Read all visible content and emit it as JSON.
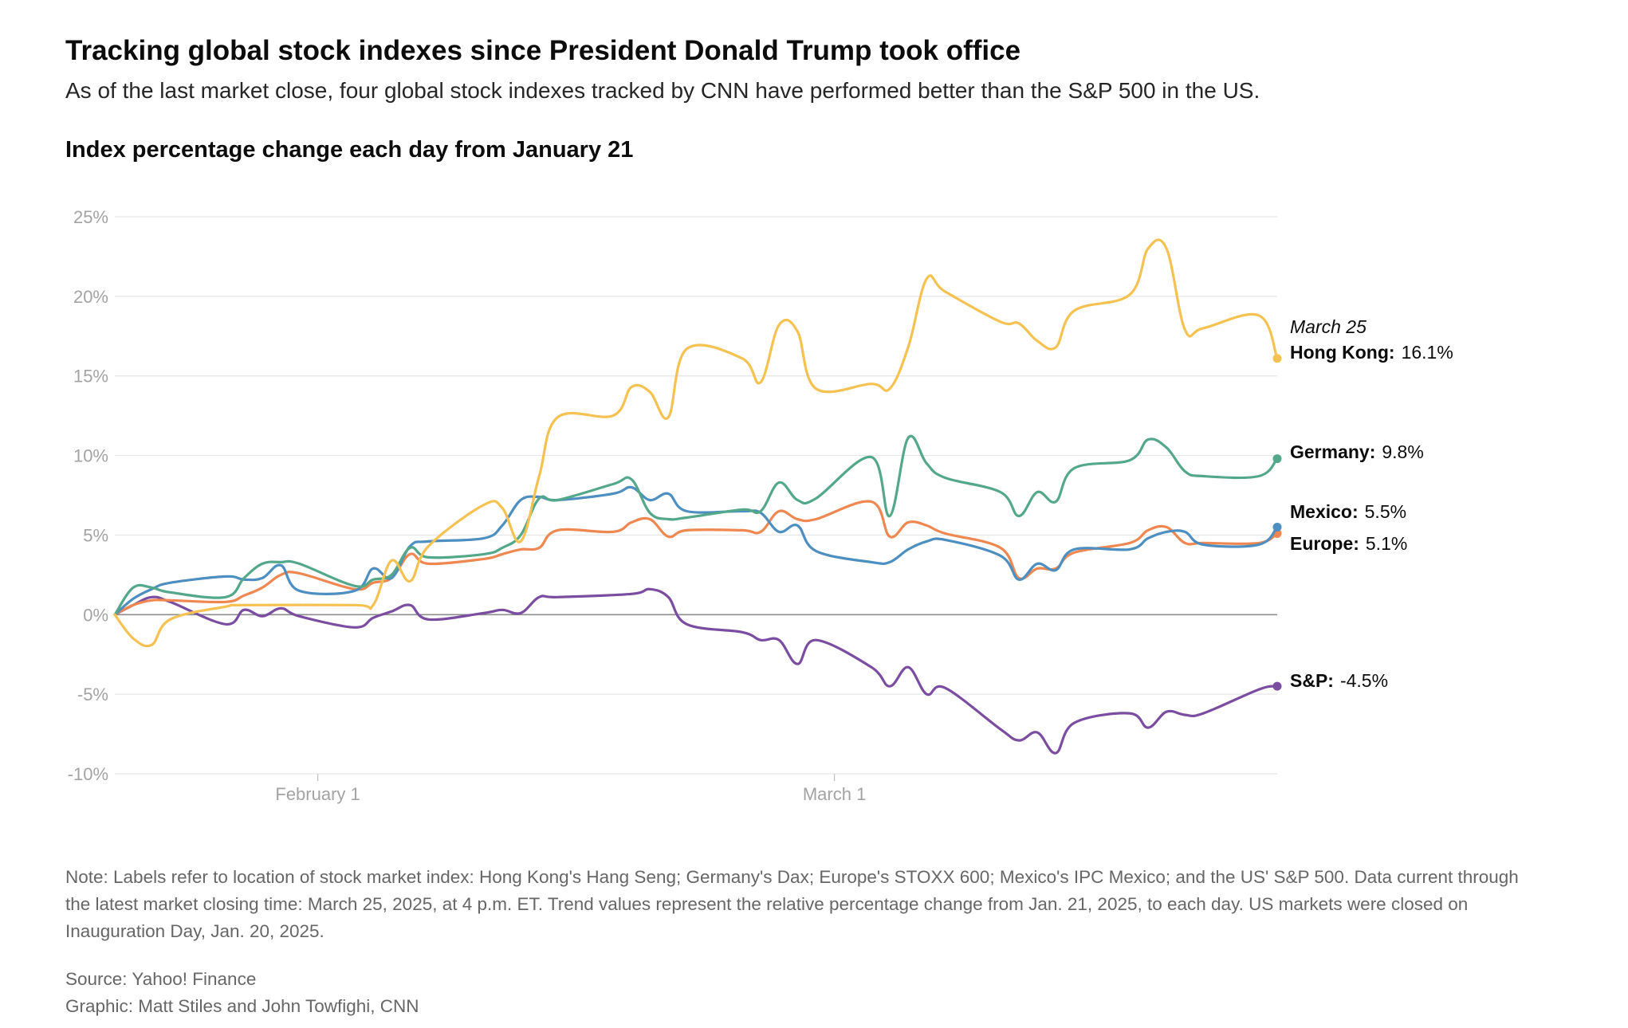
{
  "header": {
    "title": "Tracking global stock indexes since President Donald Trump took office",
    "subtitle": "As of the last market close, four global stock indexes tracked by CNN have performed better than the S&P 500 in the US.",
    "chart_heading": "Index percentage change each day from January 21"
  },
  "footer": {
    "note": "Note: Labels refer to location of stock market index: Hong Kong's Hang Seng; Germany's Dax; Europe's STOXX 600; Mexico's IPC Mexico; and the US' S&P 500. Data current through the latest market closing time: March 25, 2025, at 4 p.m. ET. Trend values represent the relative percentage change from Jan. 21, 2025, to each day. US markets were closed on Inauguration Day, Jan. 20, 2025.",
    "source": "Source: Yahoo! Finance",
    "credit": "Graphic: Matt Stiles and John Towfighi, CNN"
  },
  "chart_data": {
    "type": "line",
    "title": "Index percentage change each day from January 21",
    "xlabel": "",
    "ylabel": "",
    "x_type": "date",
    "xlim": [
      "2025-01-21",
      "2025-03-25"
    ],
    "ylim": [
      -10,
      25
    ],
    "y_ticks": [
      {
        "value": -10,
        "label": "-10%"
      },
      {
        "value": -5,
        "label": "-5%"
      },
      {
        "value": 0,
        "label": "0%"
      },
      {
        "value": 5,
        "label": "5%"
      },
      {
        "value": 10,
        "label": "10%"
      },
      {
        "value": 15,
        "label": "15%"
      },
      {
        "value": 20,
        "label": "20%"
      },
      {
        "value": 25,
        "label": "25%"
      }
    ],
    "x_ticks": [
      {
        "value": "2025-02-01",
        "label": "February 1"
      },
      {
        "value": "2025-03-01",
        "label": "March 1"
      }
    ],
    "grid": true,
    "zero_line": true,
    "legend": "end-labels",
    "end_label_date": "March 25",
    "series": [
      {
        "name": "Hong Kong",
        "value_label": "16.1%",
        "color": "#f5c252",
        "points": [
          [
            "2025-01-21",
            0
          ],
          [
            "2025-01-22",
            -1.5
          ],
          [
            "2025-01-23",
            -1.9
          ],
          [
            "2025-01-24",
            -0.3
          ],
          [
            "2025-01-27",
            0.5
          ],
          [
            "2025-01-28",
            0.6
          ],
          [
            "2025-02-03",
            0.6
          ],
          [
            "2025-02-04",
            0.6
          ],
          [
            "2025-02-05",
            3.4
          ],
          [
            "2025-02-06",
            2.1
          ],
          [
            "2025-02-07",
            4.3
          ],
          [
            "2025-02-10",
            6.9
          ],
          [
            "2025-02-11",
            6.7
          ],
          [
            "2025-02-12",
            4.6
          ],
          [
            "2025-02-13",
            8.7
          ],
          [
            "2025-02-14",
            12.4
          ],
          [
            "2025-02-17",
            12.5
          ],
          [
            "2025-02-18",
            14.3
          ],
          [
            "2025-02-19",
            14.0
          ],
          [
            "2025-02-20",
            12.4
          ],
          [
            "2025-02-21",
            16.7
          ],
          [
            "2025-02-24",
            16.1
          ],
          [
            "2025-02-25",
            14.6
          ],
          [
            "2025-02-26",
            18.2
          ],
          [
            "2025-02-27",
            17.8
          ],
          [
            "2025-02-28",
            14.2
          ],
          [
            "2025-03-03",
            14.5
          ],
          [
            "2025-03-04",
            14.2
          ],
          [
            "2025-03-05",
            16.8
          ],
          [
            "2025-03-06",
            21.1
          ],
          [
            "2025-03-07",
            20.3
          ],
          [
            "2025-03-10",
            18.4
          ],
          [
            "2025-03-11",
            18.3
          ],
          [
            "2025-03-12",
            17.2
          ],
          [
            "2025-03-13",
            16.8
          ],
          [
            "2025-03-14",
            19.1
          ],
          [
            "2025-03-17",
            20.1
          ],
          [
            "2025-03-18",
            23.0
          ],
          [
            "2025-03-19",
            23.0
          ],
          [
            "2025-03-20",
            17.9
          ],
          [
            "2025-03-21",
            18.0
          ],
          [
            "2025-03-24",
            18.8
          ],
          [
            "2025-03-25",
            16.1
          ]
        ]
      },
      {
        "name": "Germany",
        "value_label": "9.8%",
        "color": "#54a88a",
        "points": [
          [
            "2025-01-21",
            0
          ],
          [
            "2025-01-22",
            1.7
          ],
          [
            "2025-01-23",
            1.7
          ],
          [
            "2025-01-24",
            1.4
          ],
          [
            "2025-01-27",
            1.1
          ],
          [
            "2025-01-28",
            2.3
          ],
          [
            "2025-01-29",
            3.2
          ],
          [
            "2025-01-30",
            3.3
          ],
          [
            "2025-01-31",
            3.2
          ],
          [
            "2025-02-03",
            1.8
          ],
          [
            "2025-02-04",
            2.2
          ],
          [
            "2025-02-05",
            2.5
          ],
          [
            "2025-02-06",
            4.2
          ],
          [
            "2025-02-07",
            3.6
          ],
          [
            "2025-02-10",
            3.8
          ],
          [
            "2025-02-11",
            4.2
          ],
          [
            "2025-02-12",
            5.0
          ],
          [
            "2025-02-13",
            7.3
          ],
          [
            "2025-02-14",
            7.2
          ],
          [
            "2025-02-17",
            8.2
          ],
          [
            "2025-02-18",
            8.5
          ],
          [
            "2025-02-19",
            6.4
          ],
          [
            "2025-02-20",
            6.0
          ],
          [
            "2025-02-21",
            6.1
          ],
          [
            "2025-02-24",
            6.6
          ],
          [
            "2025-02-25",
            6.5
          ],
          [
            "2025-02-26",
            8.3
          ],
          [
            "2025-02-27",
            7.2
          ],
          [
            "2025-02-28",
            7.3
          ],
          [
            "2025-03-03",
            9.9
          ],
          [
            "2025-03-04",
            6.2
          ],
          [
            "2025-03-05",
            11.1
          ],
          [
            "2025-03-06",
            9.5
          ],
          [
            "2025-03-07",
            8.6
          ],
          [
            "2025-03-10",
            7.7
          ],
          [
            "2025-03-11",
            6.2
          ],
          [
            "2025-03-12",
            7.7
          ],
          [
            "2025-03-13",
            7.1
          ],
          [
            "2025-03-14",
            9.2
          ],
          [
            "2025-03-17",
            9.7
          ],
          [
            "2025-03-18",
            11.0
          ],
          [
            "2025-03-19",
            10.5
          ],
          [
            "2025-03-20",
            9.0
          ],
          [
            "2025-03-21",
            8.7
          ],
          [
            "2025-03-24",
            8.7
          ],
          [
            "2025-03-25",
            9.8
          ]
        ]
      },
      {
        "name": "Mexico",
        "value_label": "5.5%",
        "color": "#4c8fc0",
        "points": [
          [
            "2025-01-21",
            0
          ],
          [
            "2025-01-22",
            1.0
          ],
          [
            "2025-01-23",
            1.6
          ],
          [
            "2025-01-24",
            2.0
          ],
          [
            "2025-01-27",
            2.4
          ],
          [
            "2025-01-28",
            2.2
          ],
          [
            "2025-01-29",
            2.3
          ],
          [
            "2025-01-30",
            3.1
          ],
          [
            "2025-01-31",
            1.5
          ],
          [
            "2025-02-03",
            1.5
          ],
          [
            "2025-02-04",
            2.9
          ],
          [
            "2025-02-05",
            2.3
          ],
          [
            "2025-02-06",
            4.3
          ],
          [
            "2025-02-07",
            4.6
          ],
          [
            "2025-02-10",
            4.8
          ],
          [
            "2025-02-11",
            5.6
          ],
          [
            "2025-02-12",
            7.2
          ],
          [
            "2025-02-13",
            7.4
          ],
          [
            "2025-02-14",
            7.2
          ],
          [
            "2025-02-17",
            7.6
          ],
          [
            "2025-02-18",
            8.0
          ],
          [
            "2025-02-19",
            7.2
          ],
          [
            "2025-02-20",
            7.6
          ],
          [
            "2025-02-21",
            6.5
          ],
          [
            "2025-02-24",
            6.5
          ],
          [
            "2025-02-25",
            6.4
          ],
          [
            "2025-02-26",
            5.2
          ],
          [
            "2025-02-27",
            5.6
          ],
          [
            "2025-02-28",
            4.0
          ],
          [
            "2025-03-03",
            3.3
          ],
          [
            "2025-03-04",
            3.3
          ],
          [
            "2025-03-05",
            4.1
          ],
          [
            "2025-03-06",
            4.6
          ],
          [
            "2025-03-07",
            4.7
          ],
          [
            "2025-03-10",
            3.7
          ],
          [
            "2025-03-11",
            2.2
          ],
          [
            "2025-03-12",
            3.2
          ],
          [
            "2025-03-13",
            2.8
          ],
          [
            "2025-03-14",
            4.1
          ],
          [
            "2025-03-17",
            4.1
          ],
          [
            "2025-03-18",
            4.8
          ],
          [
            "2025-03-19",
            5.2
          ],
          [
            "2025-03-20",
            5.2
          ],
          [
            "2025-03-21",
            4.4
          ],
          [
            "2025-03-24",
            4.4
          ],
          [
            "2025-03-25",
            5.5
          ]
        ]
      },
      {
        "name": "Europe",
        "value_label": "5.1%",
        "color": "#ee8750",
        "points": [
          [
            "2025-01-21",
            0
          ],
          [
            "2025-01-22",
            0.6
          ],
          [
            "2025-01-23",
            0.9
          ],
          [
            "2025-01-24",
            0.9
          ],
          [
            "2025-01-27",
            0.8
          ],
          [
            "2025-01-28",
            1.2
          ],
          [
            "2025-01-29",
            1.7
          ],
          [
            "2025-01-30",
            2.5
          ],
          [
            "2025-01-31",
            2.6
          ],
          [
            "2025-02-03",
            1.6
          ],
          [
            "2025-02-04",
            2.0
          ],
          [
            "2025-02-05",
            2.3
          ],
          [
            "2025-02-06",
            3.8
          ],
          [
            "2025-02-07",
            3.2
          ],
          [
            "2025-02-10",
            3.5
          ],
          [
            "2025-02-11",
            3.8
          ],
          [
            "2025-02-12",
            4.1
          ],
          [
            "2025-02-13",
            4.2
          ],
          [
            "2025-02-14",
            5.3
          ],
          [
            "2025-02-17",
            5.2
          ],
          [
            "2025-02-18",
            5.8
          ],
          [
            "2025-02-19",
            6.0
          ],
          [
            "2025-02-20",
            4.9
          ],
          [
            "2025-02-21",
            5.3
          ],
          [
            "2025-02-24",
            5.3
          ],
          [
            "2025-02-25",
            5.2
          ],
          [
            "2025-02-26",
            6.5
          ],
          [
            "2025-02-27",
            6.0
          ],
          [
            "2025-02-28",
            6.0
          ],
          [
            "2025-03-03",
            7.1
          ],
          [
            "2025-03-04",
            4.9
          ],
          [
            "2025-03-05",
            5.8
          ],
          [
            "2025-03-06",
            5.6
          ],
          [
            "2025-03-07",
            5.1
          ],
          [
            "2025-03-10",
            4.2
          ],
          [
            "2025-03-11",
            2.3
          ],
          [
            "2025-03-12",
            2.9
          ],
          [
            "2025-03-13",
            2.9
          ],
          [
            "2025-03-14",
            3.9
          ],
          [
            "2025-03-17",
            4.5
          ],
          [
            "2025-03-18",
            5.3
          ],
          [
            "2025-03-19",
            5.5
          ],
          [
            "2025-03-20",
            4.5
          ],
          [
            "2025-03-21",
            4.5
          ],
          [
            "2025-03-24",
            4.5
          ],
          [
            "2025-03-25",
            5.1
          ]
        ]
      },
      {
        "name": "S&P",
        "value_label": "-4.5%",
        "color": "#7a4da0",
        "points": [
          [
            "2025-01-21",
            0
          ],
          [
            "2025-01-22",
            0.6
          ],
          [
            "2025-01-23",
            1.1
          ],
          [
            "2025-01-24",
            0.8
          ],
          [
            "2025-01-27",
            -0.6
          ],
          [
            "2025-01-28",
            0.3
          ],
          [
            "2025-01-29",
            -0.1
          ],
          [
            "2025-01-30",
            0.4
          ],
          [
            "2025-01-31",
            -0.1
          ],
          [
            "2025-02-03",
            -0.8
          ],
          [
            "2025-02-04",
            -0.2
          ],
          [
            "2025-02-05",
            0.2
          ],
          [
            "2025-02-06",
            0.6
          ],
          [
            "2025-02-07",
            -0.3
          ],
          [
            "2025-02-10",
            0.1
          ],
          [
            "2025-02-11",
            0.3
          ],
          [
            "2025-02-12",
            0.1
          ],
          [
            "2025-02-13",
            1.1
          ],
          [
            "2025-02-14",
            1.1
          ],
          [
            "2025-02-18",
            1.3
          ],
          [
            "2025-02-19",
            1.6
          ],
          [
            "2025-02-20",
            1.1
          ],
          [
            "2025-02-21",
            -0.6
          ],
          [
            "2025-02-24",
            -1.1
          ],
          [
            "2025-02-25",
            -1.6
          ],
          [
            "2025-02-26",
            -1.6
          ],
          [
            "2025-02-27",
            -3.1
          ],
          [
            "2025-02-28",
            -1.6
          ],
          [
            "2025-03-03",
            -3.3
          ],
          [
            "2025-03-04",
            -4.5
          ],
          [
            "2025-03-05",
            -3.3
          ],
          [
            "2025-03-06",
            -5.0
          ],
          [
            "2025-03-07",
            -4.6
          ],
          [
            "2025-03-10",
            -7.2
          ],
          [
            "2025-03-11",
            -7.9
          ],
          [
            "2025-03-12",
            -7.4
          ],
          [
            "2025-03-13",
            -8.7
          ],
          [
            "2025-03-14",
            -6.8
          ],
          [
            "2025-03-17",
            -6.2
          ],
          [
            "2025-03-18",
            -7.1
          ],
          [
            "2025-03-19",
            -6.1
          ],
          [
            "2025-03-20",
            -6.3
          ],
          [
            "2025-03-21",
            -6.2
          ],
          [
            "2025-03-24",
            -4.7
          ],
          [
            "2025-03-25",
            -4.5
          ]
        ]
      }
    ]
  }
}
